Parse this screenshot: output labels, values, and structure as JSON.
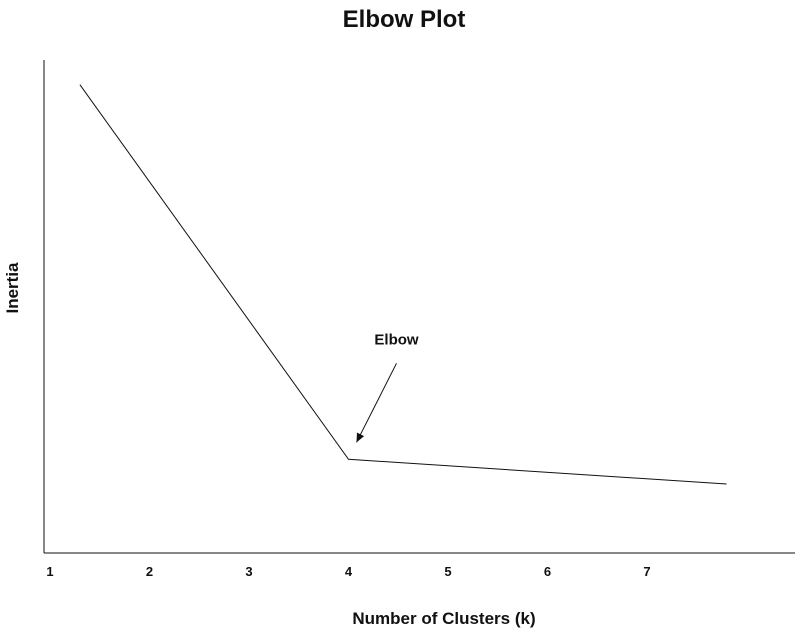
{
  "chart_data": {
    "type": "line",
    "title": "Elbow Plot",
    "xlabel": "Number of Clusters (k)",
    "ylabel": "Inertia",
    "x_ticks": [
      "1",
      "2",
      "3",
      "4",
      "5",
      "6",
      "7"
    ],
    "x_tick_values": [
      1,
      2,
      3,
      4,
      5,
      6,
      7
    ],
    "xlim": [
      1,
      7.8
    ],
    "ylim": [
      0,
      100
    ],
    "grid": false,
    "y_ticks_shown": false,
    "series": [
      {
        "values": [
          {
            "x": 1.3,
            "y": 95
          },
          {
            "x": 4,
            "y": 19
          },
          {
            "x": 7.8,
            "y": 14
          }
        ]
      }
    ],
    "annotations": [
      {
        "text": "Elbow",
        "point": {
          "x": 4,
          "y": 19
        }
      }
    ],
    "colors": {
      "line": "#111111",
      "axis": "#111111",
      "text": "#111111"
    }
  }
}
